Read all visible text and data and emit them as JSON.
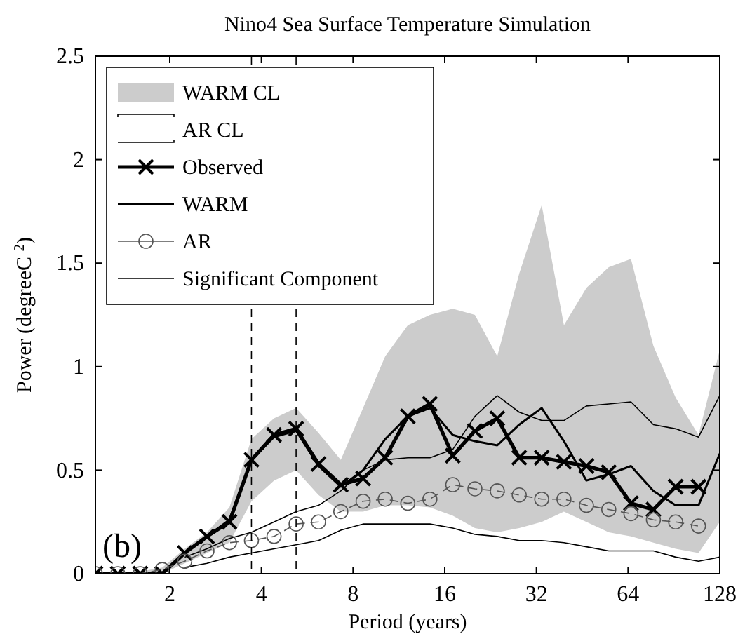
{
  "chart_data": {
    "type": "line",
    "title": "Nino4 Sea Surface Temperature Simulation",
    "xlabel": "Period (years)",
    "ylabel": "Power (degreeC $^{2}$)",
    "annotations": [
      "(b)"
    ],
    "log": "x",
    "xlim": [
      1.14,
      128
    ],
    "xticks": [
      2,
      4,
      8,
      16,
      32,
      64,
      128
    ],
    "ylim": [
      0,
      2.5
    ],
    "yticks": [
      0,
      {
        "value": 0.5,
        "label": "0.5"
      },
      1,
      {
        "value": 1.5,
        "label": "1.5"
      },
      2,
      {
        "value": 2.5,
        "label": "2.5"
      }
    ],
    "grid": false,
    "legend": "top left",
    "x": [
      1.14,
      1.35,
      1.6,
      1.89,
      2.24,
      2.65,
      3.14,
      3.71,
      4.4,
      5.2,
      6.16,
      7.29,
      8.63,
      10.2,
      12.1,
      14.3,
      17,
      20.1,
      23.8,
      28.1,
      33.3,
      39.4,
      46.7,
      55.3,
      65.4,
      77.5,
      91.7,
      109,
      128
    ],
    "series": [
      {
        "name": "WARM CL",
        "type": "area",
        "color": "#cccccc",
        "values": [
          0,
          0,
          0.01,
          0.03,
          0.12,
          0.2,
          0.32,
          0.65,
          0.75,
          0.8,
          0.68,
          0.55,
          0.8,
          1.05,
          1.2,
          1.25,
          1.28,
          1.25,
          1.05,
          1.45,
          1.78,
          1.2,
          1.38,
          1.48,
          1.52,
          1.1,
          0.85,
          0.67,
          1.08
        ]
      },
      {
        "type": "area",
        "color": "#ffffff",
        "values": [
          0,
          0,
          0,
          0,
          0.05,
          0.1,
          0.15,
          0.35,
          0.45,
          0.5,
          0.38,
          0.3,
          0.3,
          0.33,
          0.33,
          0.32,
          0.28,
          0.22,
          0.2,
          0.22,
          0.25,
          0.3,
          0.25,
          0.2,
          0.18,
          0.15,
          0.12,
          0.1,
          0.25
        ]
      },
      {
        "name": "AR CL",
        "type": "line",
        "color": "#000000",
        "line_style": "solid",
        "marker": "none",
        "values": [
          null,
          null,
          null,
          null,
          0.08,
          0.12,
          0.17,
          0.2,
          0.25,
          0.3,
          0.33,
          0.4,
          0.5,
          0.55,
          0.56,
          0.56,
          0.6,
          0.76,
          0.86,
          0.78,
          0.74,
          0.74,
          0.81,
          0.82,
          0.83,
          0.72,
          0.7,
          0.66,
          0.86
        ]
      },
      {
        "type": "line",
        "color": "#000000",
        "line_style": "solid",
        "marker": "none",
        "values": [
          null,
          null,
          null,
          null,
          0.03,
          0.05,
          0.08,
          0.1,
          0.12,
          0.14,
          0.16,
          0.21,
          0.24,
          0.24,
          0.24,
          0.24,
          0.22,
          0.19,
          0.18,
          0.16,
          0.16,
          0.15,
          0.13,
          0.11,
          0.11,
          0.11,
          0.08,
          0.06,
          0.08
        ]
      },
      {
        "name": "Observed",
        "type": "line",
        "color": "#000000",
        "line_style": "solid",
        "marker": "cross",
        "values": [
          0,
          0,
          0,
          0,
          0.1,
          0.18,
          0.25,
          0.55,
          0.67,
          0.7,
          0.53,
          0.43,
          0.46,
          0.56,
          0.76,
          0.82,
          0.57,
          0.69,
          0.75,
          0.56,
          0.56,
          0.54,
          0.52,
          0.49,
          0.34,
          0.31,
          0.42,
          0.42,
          null
        ]
      },
      {
        "name": "WARM",
        "type": "line",
        "color": "#000000",
        "line_style": "solid",
        "marker": "none",
        "values": [
          0,
          0,
          0,
          0,
          0.1,
          0.18,
          0.26,
          0.55,
          0.66,
          0.69,
          0.52,
          0.42,
          0.5,
          0.65,
          0.76,
          0.8,
          0.67,
          0.64,
          0.62,
          0.72,
          0.8,
          0.64,
          0.45,
          0.48,
          0.52,
          0.4,
          0.33,
          0.33,
          0.58
        ]
      },
      {
        "name": "AR",
        "type": "line",
        "color": "#555555",
        "line_style": "dashed",
        "marker": "circle",
        "values": [
          0,
          0,
          0,
          0.02,
          0.06,
          0.11,
          0.15,
          0.16,
          0.18,
          0.24,
          0.25,
          0.3,
          0.35,
          0.36,
          0.34,
          0.36,
          0.43,
          0.41,
          0.4,
          0.38,
          0.36,
          0.36,
          0.33,
          0.31,
          0.29,
          0.26,
          0.25,
          0.23,
          null
        ]
      }
    ],
    "ref_lines": [
      {
        "axis": "x",
        "value": 3.71,
        "label": "Significant Component",
        "color": "#000000",
        "line_style": "dashed"
      },
      {
        "axis": "x",
        "value": 5.2,
        "color": "#000000",
        "line_style": "dashed"
      }
    ]
  }
}
